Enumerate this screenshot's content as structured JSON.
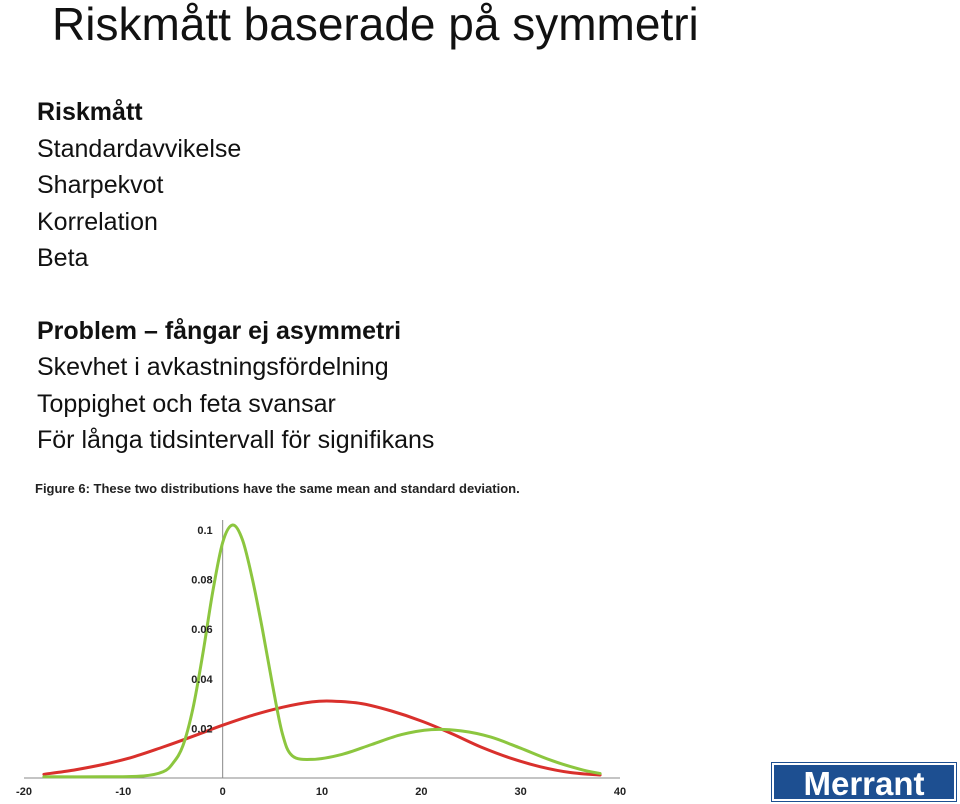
{
  "slide": {
    "title": "Riskmått baserade på symmetri",
    "section1": {
      "heading": "Riskmått",
      "items": [
        "Standardavvikelse",
        "Sharpekvot",
        "Korrelation",
        "Beta"
      ]
    },
    "section2": {
      "heading": "Problem – fångar ej asymmetri",
      "items": [
        "Skevhet i avkastningsfördelning",
        "Toppighet och feta svansar",
        "För långa tidsintervall för signifikans"
      ]
    },
    "logo_text": "Merrant"
  },
  "figure": {
    "caption": "Figure 6: These two distributions have the same mean and standard deviation."
  },
  "chart_data": {
    "type": "line",
    "x_ticks": [
      "-20",
      "-10",
      "0",
      "10",
      "20",
      "30",
      "40"
    ],
    "y_ticks": [
      "0.02",
      "0.04",
      "0.06",
      "0.08",
      "0.1"
    ],
    "xlim": [
      -20,
      40
    ],
    "ylim": [
      0,
      0.1
    ],
    "series": [
      {
        "color": "#d9302c",
        "x": [
          -18,
          -15,
          -12,
          -9,
          -6,
          -3,
          0,
          3,
          6,
          9,
          11,
          14,
          17,
          20,
          23,
          26,
          29,
          32,
          35,
          38
        ],
        "y": [
          0.0015,
          0.0032,
          0.0055,
          0.0085,
          0.0125,
          0.0168,
          0.0213,
          0.0253,
          0.0285,
          0.0307,
          0.031,
          0.03,
          0.027,
          0.023,
          0.018,
          0.0125,
          0.008,
          0.0045,
          0.0022,
          0.0012
        ]
      },
      {
        "color": "#8cc63f",
        "x": [
          -18,
          -12,
          -8,
          -6,
          -5,
          -4,
          -3,
          -2,
          -1,
          0,
          1,
          2,
          3,
          4,
          5,
          6,
          7,
          9,
          12,
          15,
          18,
          21,
          24,
          27,
          30,
          33,
          36,
          38
        ],
        "y": [
          0.0005,
          0.0005,
          0.0008,
          0.0025,
          0.006,
          0.013,
          0.028,
          0.05,
          0.075,
          0.095,
          0.102,
          0.096,
          0.08,
          0.06,
          0.038,
          0.018,
          0.009,
          0.0075,
          0.0095,
          0.0135,
          0.0175,
          0.0195,
          0.019,
          0.0165,
          0.012,
          0.0072,
          0.0035,
          0.0018
        ]
      }
    ]
  }
}
